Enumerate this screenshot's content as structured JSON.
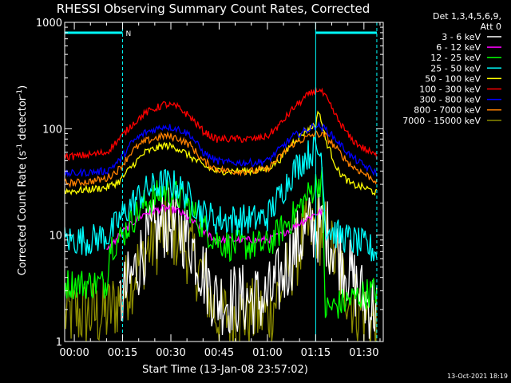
{
  "chart_data": {
    "type": "line",
    "title": "RHESSI Observing Summary Count Rates, Corrected",
    "xlabel": "Start Time (13-Jan-08 23:57:02)",
    "ylabel_main": "Corrected Count Rate (s",
    "ylabel_exp1": "-1",
    "ylabel_mid": " detector",
    "ylabel_exp2": "-1",
    "ylabel_end": ")",
    "yscale": "log",
    "ylim": [
      1,
      1000
    ],
    "xlim_min": [
      -3,
      96
    ],
    "x_tick_values_min": [
      0,
      15,
      30,
      45,
      60,
      75,
      90
    ],
    "x_tick_labels": [
      "00:00",
      "00:15",
      "00:30",
      "00:45",
      "01:00",
      "01:15",
      "01:30"
    ],
    "y_tick_values": [
      1,
      10,
      100,
      1000
    ],
    "y_tick_labels": [
      "1",
      "10",
      "100",
      "1000"
    ],
    "legend_header": [
      "Det 1,3,4,5,6,9,",
      "Att 0"
    ],
    "legend_placement": "right",
    "night_marker_label": "N",
    "vertical_markers_min": [
      15,
      75,
      94
    ],
    "top_bars_min": [
      [
        -3,
        15
      ],
      [
        75,
        94
      ]
    ],
    "timestamp": "13-Oct-2021 18:19",
    "series": [
      {
        "name": "3 - 6 keV",
        "color": "#ffffff",
        "x": [
          -3,
          10,
          14,
          18,
          22,
          28,
          32,
          36,
          40,
          44,
          48,
          52,
          56,
          60,
          64,
          68,
          72,
          75,
          78,
          82,
          86,
          90,
          94
        ],
        "y": [
          null,
          null,
          2.2,
          4,
          8,
          13,
          12,
          9,
          4.5,
          2.5,
          2.5,
          2.5,
          2.5,
          2.5,
          3.8,
          7,
          11,
          12,
          11,
          7,
          4,
          2.5,
          2
        ]
      },
      {
        "name": "6 - 12 keV",
        "color": "#ff00ff",
        "x": [
          10,
          14,
          18,
          22,
          28,
          32,
          36,
          40,
          44,
          48,
          52,
          56,
          60,
          64,
          68,
          72,
          75,
          78,
          82,
          86,
          90,
          94
        ],
        "y": [
          7,
          10,
          13,
          16,
          18,
          17,
          14,
          11,
          9,
          9,
          9,
          9,
          9,
          10,
          12,
          14,
          16,
          17,
          null,
          null,
          null,
          null
        ]
      },
      {
        "name": "12 - 25 keV",
        "color": "#00ff00",
        "x": [
          -3,
          0,
          5,
          10,
          11,
          14,
          18,
          22,
          28,
          32,
          36,
          40,
          44,
          48,
          52,
          56,
          60,
          64,
          68,
          72,
          75,
          77,
          78,
          82,
          86,
          90,
          94
        ],
        "y": [
          3.5,
          3.5,
          3.5,
          3.5,
          8,
          9,
          14,
          20,
          26,
          24,
          18,
          12,
          9,
          8,
          8,
          8,
          8,
          11,
          15,
          22,
          30,
          33,
          2,
          2.2,
          2.5,
          2.8,
          3
        ]
      },
      {
        "name": "25 - 50 keV",
        "color": "#00ffff",
        "x": [
          -3,
          0,
          5,
          10,
          11,
          14,
          18,
          22,
          28,
          32,
          36,
          40,
          44,
          48,
          52,
          56,
          60,
          64,
          68,
          72,
          75,
          77,
          78,
          82,
          86,
          90,
          94
        ],
        "y": [
          9,
          9,
          9,
          10,
          10,
          14,
          20,
          26,
          31,
          29,
          22,
          16,
          14,
          14,
          14,
          14,
          15,
          24,
          40,
          55,
          65,
          55,
          12,
          10,
          9,
          8,
          7
        ]
      },
      {
        "name": "50 - 100 keV",
        "color": "#ffff00",
        "x": [
          -3,
          0,
          5,
          10,
          14,
          18,
          22,
          28,
          32,
          36,
          40,
          44,
          48,
          52,
          56,
          60,
          64,
          68,
          72,
          75,
          76,
          78,
          82,
          86,
          90,
          94
        ],
        "y": [
          26,
          26,
          27,
          28,
          32,
          45,
          60,
          70,
          66,
          55,
          45,
          40,
          40,
          40,
          40,
          42,
          52,
          75,
          95,
          110,
          150,
          80,
          40,
          30,
          28,
          25
        ]
      },
      {
        "name": "100 - 300 keV",
        "color": "#ff0000",
        "x": [
          -3,
          0,
          5,
          10,
          14,
          18,
          22,
          28,
          32,
          36,
          40,
          44,
          48,
          52,
          56,
          60,
          64,
          68,
          72,
          75,
          76,
          78,
          82,
          86,
          90,
          94
        ],
        "y": [
          55,
          55,
          57,
          60,
          80,
          110,
          140,
          170,
          160,
          130,
          95,
          80,
          80,
          80,
          80,
          85,
          110,
          155,
          200,
          230,
          235,
          200,
          120,
          80,
          65,
          55
        ]
      },
      {
        "name": "300 - 800 keV",
        "color": "#0000ff",
        "x": [
          -3,
          0,
          5,
          10,
          14,
          18,
          22,
          28,
          32,
          36,
          40,
          44,
          48,
          52,
          56,
          60,
          64,
          68,
          72,
          75,
          78,
          82,
          86,
          90,
          94
        ],
        "y": [
          38,
          38,
          39,
          40,
          50,
          75,
          92,
          106,
          100,
          88,
          60,
          50,
          48,
          48,
          48,
          50,
          65,
          85,
          96,
          108,
          100,
          75,
          55,
          45,
          38
        ]
      },
      {
        "name": "800 - 7000 keV",
        "color": "#ff8000",
        "x": [
          -3,
          0,
          5,
          10,
          14,
          18,
          22,
          28,
          32,
          36,
          40,
          44,
          48,
          52,
          56,
          60,
          64,
          68,
          72,
          75,
          78,
          82,
          86,
          90,
          94
        ],
        "y": [
          31,
          31,
          32,
          34,
          42,
          62,
          76,
          86,
          82,
          70,
          50,
          42,
          40,
          40,
          40,
          42,
          55,
          72,
          82,
          90,
          86,
          62,
          45,
          38,
          32
        ]
      },
      {
        "name": "7000 - 15000 keV",
        "color": "#8c8c00",
        "x": [
          -3,
          0,
          5,
          10,
          14,
          18,
          22,
          28,
          32,
          36,
          40,
          44,
          48,
          52,
          56,
          60,
          64,
          68,
          72,
          75,
          78,
          82,
          86,
          90,
          94
        ],
        "y": [
          1.8,
          1.8,
          1.8,
          1.8,
          2.5,
          4,
          7,
          11,
          10,
          7,
          4,
          1.8,
          1.8,
          1.8,
          1.8,
          1.8,
          3,
          6,
          10,
          12,
          10,
          5,
          2.5,
          1.8,
          1.5
        ]
      }
    ]
  }
}
